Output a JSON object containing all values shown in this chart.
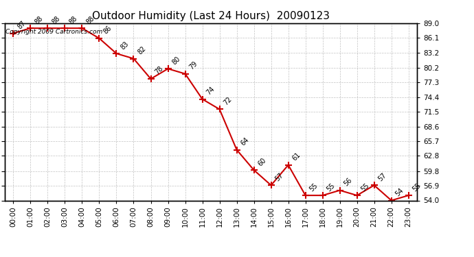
{
  "title": "Outdoor Humidity (Last 24 Hours)  20090123",
  "copyright": "Copyright 2009 Cartronics.com",
  "x_labels": [
    "00:00",
    "01:00",
    "02:00",
    "03:00",
    "04:00",
    "05:00",
    "06:00",
    "07:00",
    "08:00",
    "09:00",
    "10:00",
    "11:00",
    "12:00",
    "13:00",
    "14:00",
    "15:00",
    "16:00",
    "17:00",
    "18:00",
    "19:00",
    "20:00",
    "21:00",
    "22:00",
    "23:00"
  ],
  "data_x": [
    0,
    1,
    2,
    3,
    4,
    5,
    6,
    7,
    8,
    9,
    10,
    11,
    12,
    13,
    14,
    15,
    16,
    17,
    18,
    19,
    20,
    21,
    22,
    23
  ],
  "data_y": [
    87,
    88,
    88,
    88,
    88,
    86,
    83,
    82,
    78,
    80,
    79,
    74,
    72,
    64,
    60,
    57,
    61,
    55,
    55,
    56,
    55,
    57,
    54,
    55
  ],
  "ylim_min": 54.0,
  "ylim_max": 89.0,
  "yticks": [
    54.0,
    56.9,
    59.8,
    62.8,
    65.7,
    68.6,
    71.5,
    74.4,
    77.3,
    80.2,
    83.2,
    86.1,
    89.0
  ],
  "ytick_labels": [
    "54.0",
    "56.9",
    "59.8",
    "62.8",
    "65.7",
    "68.6",
    "71.5",
    "74.4",
    "77.3",
    "80.2",
    "83.2",
    "86.1",
    "89.0"
  ],
  "line_color": "#cc0000",
  "marker": "+",
  "marker_size": 7,
  "marker_color": "#cc0000",
  "bg_color": "#ffffff",
  "grid_color": "#bbbbbb",
  "title_fontsize": 11,
  "label_fontsize": 7.5,
  "annotation_fontsize": 7,
  "copyright_fontsize": 6.5
}
